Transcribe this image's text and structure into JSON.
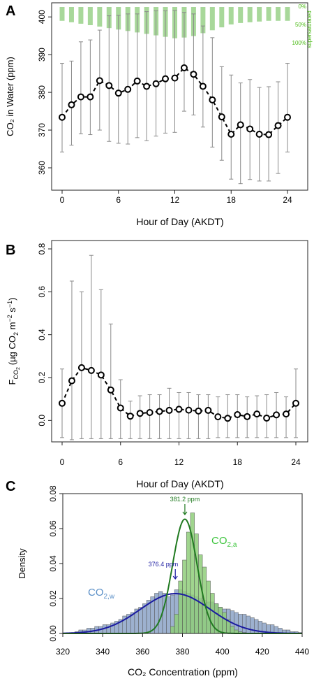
{
  "panel_labels": [
    "A",
    "B",
    "C"
  ],
  "colors": {
    "axis": "#222222",
    "errorbar": "#8a8a8a",
    "point": "#000000",
    "supersat": "#a8d89a",
    "supersat_text": "#4cbb17",
    "hist_w": "#9db1cf",
    "hist_a": "#8fce7a",
    "curve_w": "#1a1aa0",
    "curve_a": "#207a20",
    "annot_w": "#1a1aa0",
    "annot_a": "#207a20",
    "label_w": "#5a8fc7",
    "label_a": "#3cc43c"
  },
  "chart_data": [
    {
      "panel": "A",
      "type": "scatter",
      "title": "",
      "xlabel": "Hour of Day (AKDT)",
      "ylabel": "CO₂ in Water (ppm)",
      "xlim": [
        0,
        24
      ],
      "ylim": [
        355,
        403
      ],
      "xticks": [
        0,
        6,
        12,
        18,
        24
      ],
      "yticks": [
        360,
        370,
        380,
        390,
        400
      ],
      "x": [
        0,
        1,
        2,
        3,
        4,
        5,
        6,
        7,
        8,
        9,
        10,
        11,
        12,
        13,
        14,
        15,
        16,
        17,
        18,
        19,
        20,
        21,
        22,
        23,
        24
      ],
      "y": [
        373.4,
        376.7,
        378.8,
        378.8,
        383.1,
        381.8,
        379.8,
        380.8,
        383.0,
        381.6,
        382.3,
        383.6,
        383.8,
        386.5,
        384.8,
        381.6,
        378.0,
        373.5,
        368.9,
        371.4,
        370.3,
        368.9,
        368.8,
        371.2,
        373.4
      ],
      "err_low": [
        364.2,
        366.0,
        369.0,
        368.8,
        370.0,
        367.0,
        366.5,
        366.3,
        368.0,
        367.2,
        368.4,
        369.2,
        369.4,
        375.0,
        374.0,
        370.8,
        365.5,
        362.0,
        357.0,
        355.8,
        356.9,
        356.5,
        356.5,
        358.5,
        364.2
      ],
      "err_high": [
        387.7,
        388.3,
        393.4,
        393.9,
        396.5,
        400.3,
        400.4,
        400.8,
        400.8,
        401.4,
        401.6,
        401.6,
        401.7,
        401.2,
        400.8,
        397.6,
        394.5,
        386.8,
        384.6,
        382.5,
        383.4,
        381.3,
        381.5,
        382.8,
        387.7
      ],
      "supersaturated": {
        "label": "supersaturated",
        "tick_labels": [
          "0%",
          "50%",
          "100%"
        ],
        "percent": [
          38,
          42,
          46,
          50,
          54,
          58,
          62,
          66,
          70,
          74,
          78,
          82,
          86,
          84,
          80,
          72,
          64,
          56,
          48,
          44,
          42,
          40,
          38,
          38,
          38
        ]
      }
    },
    {
      "panel": "B",
      "type": "scatter",
      "title": "",
      "xlabel": "Hour of Day (AKDT)",
      "ylabel": "F_CO₂ (µg CO₂ m⁻² s⁻¹)",
      "ylabel_parts": {
        "f": "F",
        "f_sub": "CO",
        "f_sub2": "2",
        "mid": "(µg CO",
        "mid_sub": "2",
        "unit": " m",
        "unit_sup": "−2",
        "unit2": " s",
        "unit2_sup": "−1",
        "close": ")"
      },
      "xlim": [
        0,
        24
      ],
      "ylim": [
        -0.1,
        0.8
      ],
      "xticks": [
        0,
        6,
        12,
        18,
        24
      ],
      "yticks": [
        0.0,
        0.2,
        0.4,
        0.6,
        0.8
      ],
      "x": [
        0,
        1,
        2,
        3,
        4,
        5,
        6,
        7,
        8,
        9,
        10,
        11,
        12,
        13,
        14,
        15,
        16,
        17,
        18,
        19,
        20,
        21,
        22,
        23,
        24
      ],
      "y": [
        0.08,
        0.185,
        0.246,
        0.233,
        0.212,
        0.142,
        0.058,
        0.02,
        0.033,
        0.037,
        0.042,
        0.047,
        0.052,
        0.048,
        0.044,
        0.047,
        0.017,
        0.01,
        0.027,
        0.018,
        0.03,
        0.011,
        0.026,
        0.03,
        0.08
      ],
      "err_low": [
        -0.08,
        -0.09,
        -0.085,
        -0.085,
        -0.085,
        -0.085,
        -0.085,
        -0.085,
        -0.085,
        -0.085,
        -0.085,
        -0.085,
        -0.085,
        -0.085,
        -0.085,
        -0.085,
        -0.08,
        -0.08,
        -0.08,
        -0.08,
        -0.08,
        -0.08,
        -0.08,
        -0.08,
        -0.08
      ],
      "err_high": [
        0.24,
        0.65,
        0.6,
        0.77,
        0.61,
        0.45,
        0.19,
        0.09,
        0.115,
        0.12,
        0.12,
        0.15,
        0.13,
        0.13,
        0.12,
        0.12,
        0.11,
        0.12,
        0.12,
        0.11,
        0.115,
        0.12,
        0.13,
        0.11,
        0.24
      ]
    },
    {
      "panel": "C",
      "type": "bar",
      "title": "Hour of Day (AKDT)",
      "xlabel": "CO₂ Concentration (ppm)",
      "ylabel": "Density",
      "xlim": [
        320,
        440
      ],
      "ylim": [
        0,
        0.08
      ],
      "xticks": [
        320,
        340,
        360,
        380,
        400,
        420,
        440
      ],
      "yticks": [
        0.0,
        0.02,
        0.04,
        0.06,
        0.08
      ],
      "bin_start": 326,
      "bin_width": 2,
      "series": [
        {
          "name": "CO₂,w",
          "values": [
            0.001,
            0.002,
            0.002,
            0.003,
            0.003,
            0.004,
            0.004,
            0.005,
            0.005,
            0.006,
            0.007,
            0.008,
            0.01,
            0.011,
            0.012,
            0.014,
            0.015,
            0.017,
            0.019,
            0.021,
            0.023,
            0.024,
            0.023,
            0.021,
            0.022,
            0.025,
            0.025,
            0.024,
            0.023,
            0.022,
            0.021,
            0.02,
            0.019,
            0.018,
            0.018,
            0.017,
            0.015,
            0.014,
            0.014,
            0.013,
            0.012,
            0.011,
            0.011,
            0.01,
            0.009,
            0.008,
            0.007,
            0.006,
            0.005,
            0.005,
            0.004,
            0.003,
            0.002,
            0.002,
            0.001,
            0.001,
            0.0005
          ]
        },
        {
          "name": "CO₂,a",
          "values": [
            0,
            0,
            0,
            0,
            0,
            0,
            0,
            0,
            0,
            0,
            0,
            0,
            0,
            0,
            0,
            0,
            0,
            0,
            0,
            0,
            0,
            0,
            0,
            0,
            0.004,
            0.011,
            0.03,
            0.042,
            0.058,
            0.069,
            0.057,
            0.045,
            0.038,
            0.03,
            0.023,
            0.017,
            0.015,
            0.012,
            0.008,
            0.004,
            0.002,
            0.001,
            0.0005,
            0,
            0,
            0,
            0,
            0,
            0,
            0,
            0,
            0,
            0,
            0,
            0,
            0,
            0
          ]
        }
      ],
      "fits": [
        {
          "name": "CO₂,w",
          "mean": 376.4,
          "sd": 17.5
        },
        {
          "name": "CO₂,a",
          "mean": 381.2,
          "sd": 6.1
        }
      ],
      "annotations": [
        {
          "text": "376.4 ppm",
          "x": 376.4
        },
        {
          "text": "381.2 ppm",
          "x": 381.2
        }
      ],
      "series_labels": [
        {
          "main": "CO",
          "sub": "2,w"
        },
        {
          "main": "CO",
          "sub": "2,a"
        }
      ]
    }
  ]
}
